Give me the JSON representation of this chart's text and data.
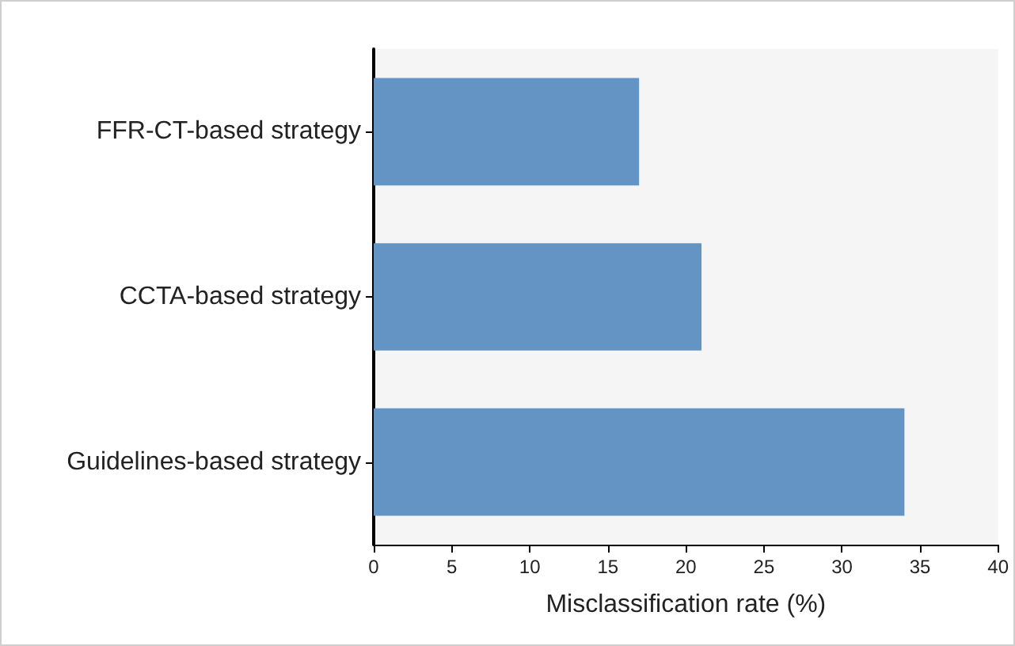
{
  "chart_data": {
    "type": "bar",
    "orientation": "horizontal",
    "xlabel": "Misclassification rate (%)",
    "categories": [
      "FFR-CT-based strategy",
      "CCTA-based strategy",
      "Guidelines-based strategy"
    ],
    "values": [
      17,
      21,
      34
    ],
    "color": "#6494c4",
    "xlim": [
      0,
      40
    ],
    "xticks": [
      0,
      5,
      10,
      15,
      20,
      25,
      30,
      35,
      40
    ],
    "grid": false
  }
}
